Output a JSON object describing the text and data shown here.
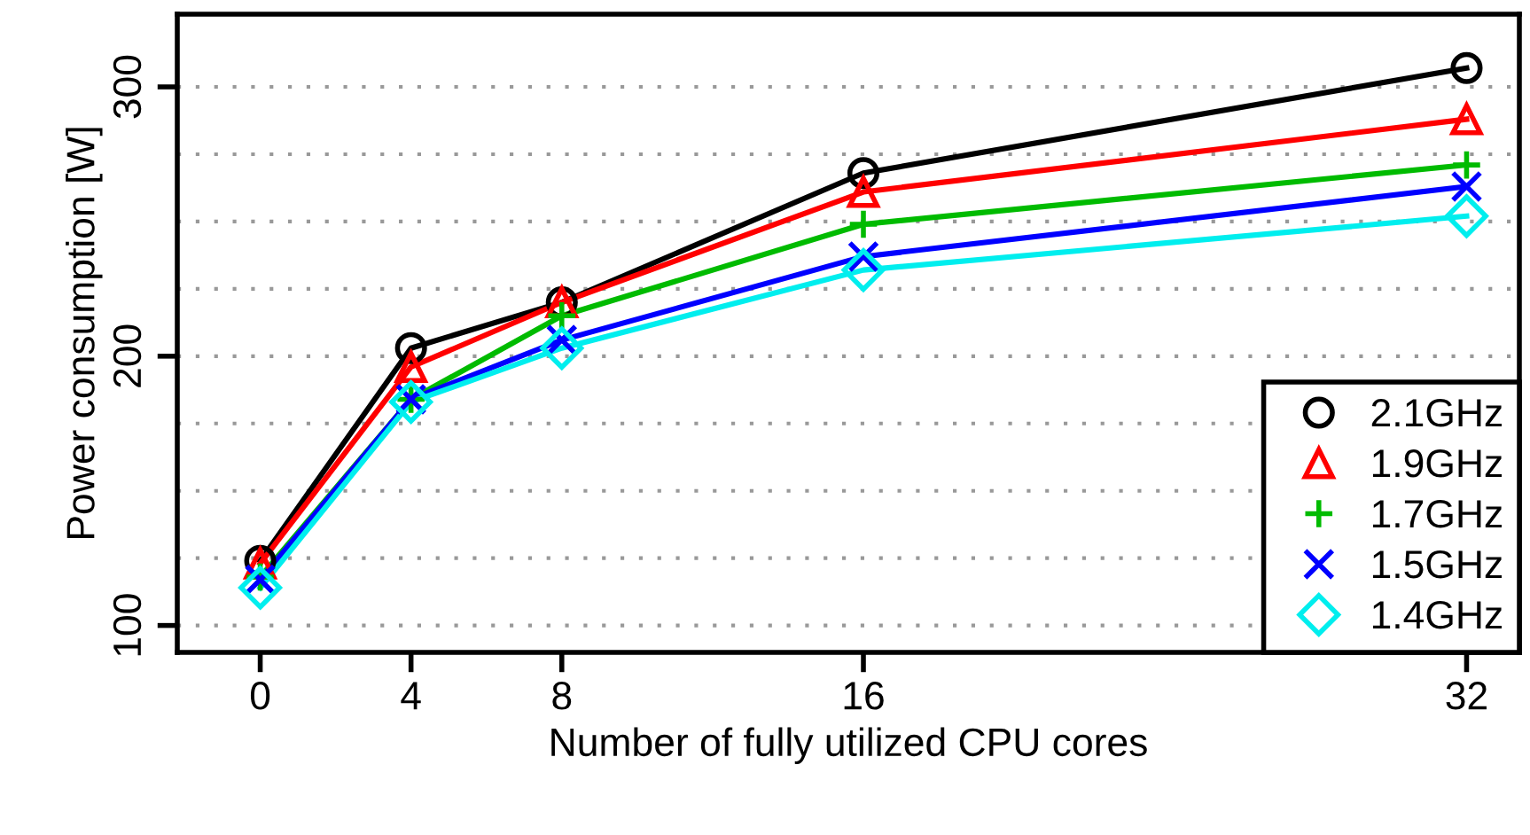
{
  "chart_data": {
    "type": "line",
    "xlabel": "Number of fully utilized CPU cores",
    "ylabel": "Power consumption [W]",
    "x": [
      0,
      4,
      8,
      16,
      32
    ],
    "series": [
      {
        "name": "2.1GHz",
        "color": "#000000",
        "marker": "circle",
        "values": [
          124,
          203,
          220,
          268,
          307
        ]
      },
      {
        "name": "1.9GHz",
        "color": "#ff0000",
        "marker": "triangle",
        "values": [
          123,
          196,
          220,
          261,
          288
        ]
      },
      {
        "name": "1.7GHz",
        "color": "#00bb00",
        "marker": "plus",
        "values": [
          118,
          184,
          215,
          249,
          271
        ]
      },
      {
        "name": "1.5GHz",
        "color": "#0000ff",
        "marker": "cross",
        "values": [
          117,
          184,
          206,
          237,
          263
        ]
      },
      {
        "name": "1.4GHz",
        "color": "#00eeee",
        "marker": "diamond",
        "values": [
          114,
          183,
          203,
          232,
          252
        ]
      }
    ],
    "xlim": [
      -2.2,
      33.4
    ],
    "xticks": [
      0,
      4,
      8,
      16,
      32
    ],
    "ylim": [
      90,
      327
    ],
    "yticks": [
      100,
      {
        "value": 125,
        "label": null
      },
      {
        "value": 150,
        "label": null
      },
      {
        "value": 175,
        "label": null
      },
      200,
      {
        "value": 225,
        "label": null
      },
      {
        "value": 250,
        "label": null
      },
      {
        "value": 275,
        "label": null
      },
      300
    ],
    "grid": "y",
    "legend": "bottom right"
  }
}
